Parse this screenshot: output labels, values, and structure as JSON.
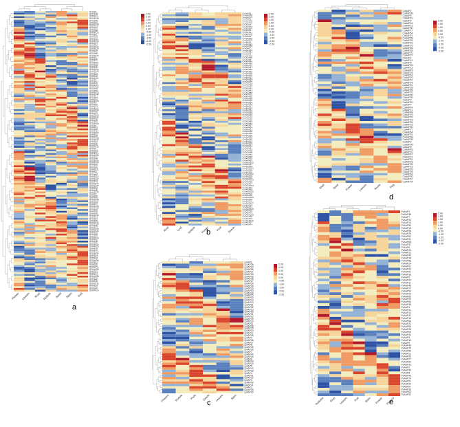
{
  "figure": {
    "panels": [
      {
        "id": "a",
        "label": "a",
        "columns": [
          "Flower",
          "Leaves",
          "Root",
          "Nodule",
          "Seed",
          "Stem",
          "Pod"
        ],
        "row_count": 160,
        "row_prefix": "GhAAP",
        "scale_ticks": [
          "2.50",
          "2.00",
          "1.50",
          "1.00",
          "0.50",
          "0.00",
          "-0.50",
          "-1.00",
          "-1.50",
          "-2.00",
          "-2.50"
        ]
      },
      {
        "id": "b",
        "label": "b",
        "columns": [
          "Root",
          "Leaf",
          "Nodule",
          "Flower",
          "Fruit",
          "Seeds"
        ],
        "row_count": 110,
        "row_prefix": "GmAAP",
        "scale_ticks": [
          "2.50",
          "2.00",
          "1.50",
          "1.00",
          "0.50",
          "0.00",
          "-0.50",
          "-1.00",
          "-1.50",
          "-2.00",
          "-2.50"
        ]
      },
      {
        "id": "c",
        "label": "c",
        "columns": [
          "Flowers",
          "Nodule",
          "Pods",
          "Seeds",
          "Leaves",
          "Stem"
        ],
        "row_count": 56,
        "row_prefix": "LjAAP",
        "scale_ticks": [
          "2.00",
          "1.50",
          "1.00",
          "0.50",
          "0.00",
          "-0.50",
          "-1.00",
          "-1.50",
          "-2.00",
          "-2.50"
        ]
      },
      {
        "id": "d",
        "label": "d",
        "columns": [
          "Shell",
          "Seed",
          "Flower",
          "Leaves",
          "Roots",
          "Peg"
        ],
        "row_count": 70,
        "row_prefix": "CaAAP",
        "scale_ticks": [
          "2.00",
          "1.50",
          "1.00",
          "0.50",
          "0.00",
          "-0.50",
          "-1.00",
          "-1.50",
          "-2.00",
          "-2.50"
        ]
      },
      {
        "id": "e",
        "label": "e",
        "columns": [
          "Nodules",
          "Root",
          "Leaves",
          "Pod",
          "Stem",
          "Flower",
          "Flowers"
        ],
        "row_count": 68,
        "row_prefix": "PvAAP",
        "scale_ticks": [
          "2.00",
          "1.80",
          "1.50",
          "1.00",
          "0.50",
          "0.00",
          "-0.50",
          "-1.00",
          "-1.50",
          "-2.00",
          "-2.50"
        ]
      }
    ],
    "palette": [
      "#2f54a5",
      "#5a7fbd",
      "#93b2d6",
      "#f3ecbe",
      "#f7d49a",
      "#ef9b63",
      "#d9452d",
      "#b2182b"
    ]
  }
}
